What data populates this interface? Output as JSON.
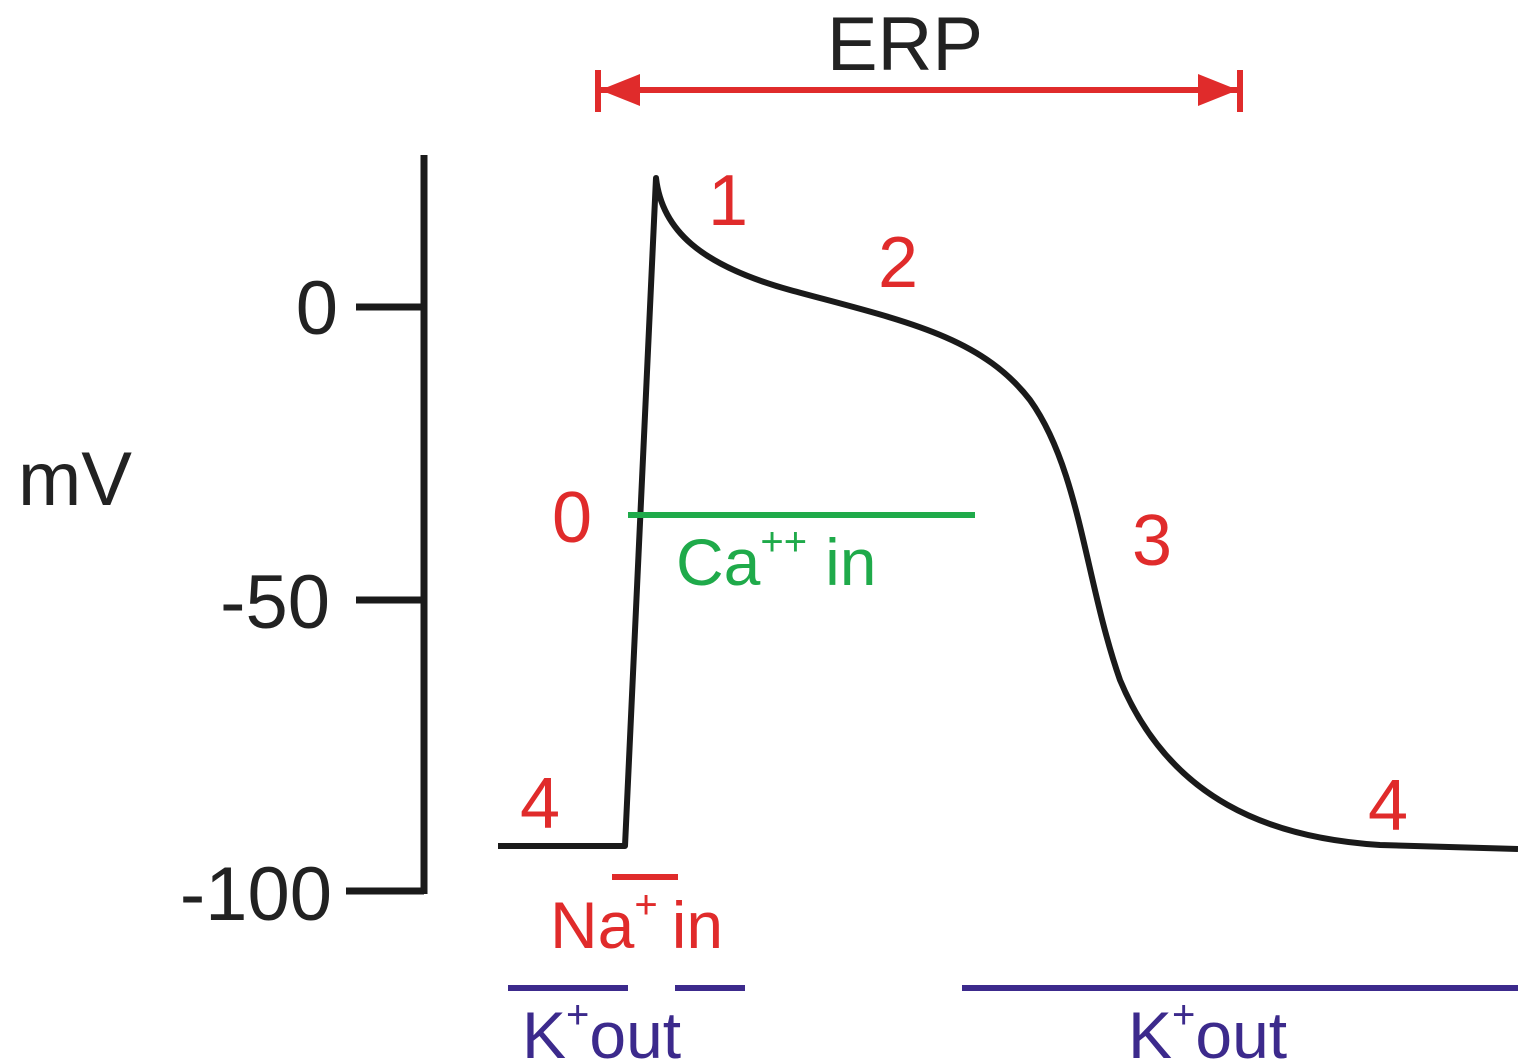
{
  "colors": {
    "trace": "#1a1a1a",
    "erp": "#e02b2b",
    "phase": "#e02b2b",
    "sodium": "#e02b2b",
    "calcium": "#1faa4a",
    "potassium": "#3c2a8c",
    "axis": "#1a1a1a"
  },
  "erp_label": "ERP",
  "y_axis": {
    "unit": "mV",
    "ticks": [
      {
        "value": 0,
        "label": "0"
      },
      {
        "value": -50,
        "label": "-50"
      },
      {
        "value": -100,
        "label": "-100"
      }
    ]
  },
  "phases": [
    {
      "id": "phase-0",
      "label": "0"
    },
    {
      "id": "phase-1",
      "label": "1"
    },
    {
      "id": "phase-2",
      "label": "2"
    },
    {
      "id": "phase-3",
      "label": "3"
    },
    {
      "id": "phase-4-start",
      "label": "4"
    },
    {
      "id": "phase-4-end",
      "label": "4"
    }
  ],
  "currents": {
    "calcium": {
      "ion": "Ca",
      "charge": "++",
      "direction": "in"
    },
    "sodium": {
      "ion": "Na",
      "charge": "+",
      "direction": "in"
    },
    "potassium_early": {
      "ion": "K",
      "charge": "+",
      "direction": "out"
    },
    "potassium_late": {
      "ion": "K",
      "charge": "+",
      "direction": "out"
    }
  }
}
